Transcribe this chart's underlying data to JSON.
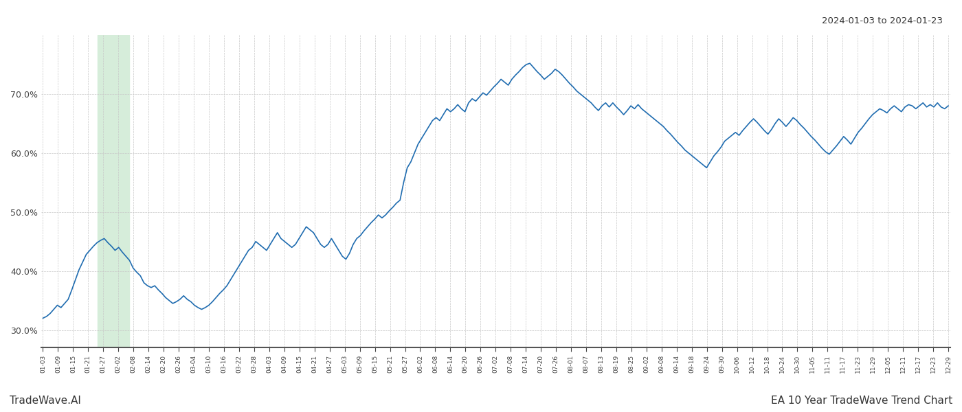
{
  "title_top_right": "2024-01-03 to 2024-01-23",
  "title_bottom_right": "EA 10 Year TradeWave Trend Chart",
  "title_bottom_left": "TradeWave.AI",
  "line_color": "#1f6cb0",
  "line_width": 1.2,
  "background_color": "#ffffff",
  "grid_color": "#c8c8c8",
  "highlight_color": "#d6edda",
  "ylim": [
    27,
    80
  ],
  "yticks": [
    30,
    40,
    50,
    60,
    70
  ],
  "x_labels": [
    "01-03",
    "01-09",
    "01-15",
    "01-21",
    "01-27",
    "02-02",
    "02-08",
    "02-14",
    "02-20",
    "02-26",
    "03-04",
    "03-10",
    "03-16",
    "03-22",
    "03-28",
    "04-03",
    "04-09",
    "04-15",
    "04-21",
    "04-27",
    "05-03",
    "05-09",
    "05-15",
    "05-21",
    "05-27",
    "06-02",
    "06-08",
    "06-14",
    "06-20",
    "06-26",
    "07-02",
    "07-08",
    "07-14",
    "07-20",
    "07-26",
    "08-01",
    "08-07",
    "08-13",
    "08-19",
    "08-25",
    "09-02",
    "09-08",
    "09-14",
    "09-18",
    "09-24",
    "09-30",
    "10-06",
    "10-12",
    "10-18",
    "10-24",
    "10-30",
    "11-05",
    "11-11",
    "11-17",
    "11-23",
    "11-29",
    "12-05",
    "12-11",
    "12-17",
    "12-23",
    "12-29"
  ],
  "highlight_x_start": "01-15",
  "highlight_x_end": "01-27",
  "values": [
    32.0,
    32.3,
    32.8,
    33.5,
    34.2,
    33.8,
    34.5,
    35.2,
    36.8,
    38.5,
    40.2,
    41.5,
    42.8,
    43.5,
    44.2,
    44.8,
    45.2,
    45.5,
    44.8,
    44.2,
    43.5,
    44.0,
    43.2,
    42.5,
    41.8,
    40.5,
    39.8,
    39.2,
    38.0,
    37.5,
    37.2,
    37.5,
    36.8,
    36.2,
    35.5,
    35.0,
    34.5,
    34.8,
    35.2,
    35.8,
    35.2,
    34.8,
    34.2,
    33.8,
    33.5,
    33.8,
    34.2,
    34.8,
    35.5,
    36.2,
    36.8,
    37.5,
    38.5,
    39.5,
    40.5,
    41.5,
    42.5,
    43.5,
    44.0,
    45.0,
    44.5,
    44.0,
    43.5,
    44.5,
    45.5,
    46.5,
    45.5,
    45.0,
    44.5,
    44.0,
    44.5,
    45.5,
    46.5,
    47.5,
    47.0,
    46.5,
    45.5,
    44.5,
    44.0,
    44.5,
    45.5,
    44.5,
    43.5,
    42.5,
    42.0,
    43.0,
    44.5,
    45.5,
    46.0,
    46.8,
    47.5,
    48.2,
    48.8,
    49.5,
    49.0,
    49.5,
    50.2,
    50.8,
    51.5,
    52.0,
    55.0,
    57.5,
    58.5,
    60.0,
    61.5,
    62.5,
    63.5,
    64.5,
    65.5,
    66.0,
    65.5,
    66.5,
    67.5,
    67.0,
    67.5,
    68.2,
    67.5,
    67.0,
    68.5,
    69.2,
    68.8,
    69.5,
    70.2,
    69.8,
    70.5,
    71.2,
    71.8,
    72.5,
    72.0,
    71.5,
    72.5,
    73.2,
    73.8,
    74.5,
    75.0,
    75.2,
    74.5,
    73.8,
    73.2,
    72.5,
    73.0,
    73.5,
    74.2,
    73.8,
    73.2,
    72.5,
    71.8,
    71.2,
    70.5,
    70.0,
    69.5,
    69.0,
    68.5,
    67.8,
    67.2,
    68.0,
    68.5,
    67.8,
    68.5,
    67.8,
    67.2,
    66.5,
    67.2,
    68.0,
    67.5,
    68.2,
    67.5,
    67.0,
    66.5,
    66.0,
    65.5,
    65.0,
    64.5,
    63.8,
    63.2,
    62.5,
    61.8,
    61.2,
    60.5,
    60.0,
    59.5,
    59.0,
    58.5,
    58.0,
    57.5,
    58.5,
    59.5,
    60.2,
    61.0,
    62.0,
    62.5,
    63.0,
    63.5,
    63.0,
    63.8,
    64.5,
    65.2,
    65.8,
    65.2,
    64.5,
    63.8,
    63.2,
    64.0,
    65.0,
    65.8,
    65.2,
    64.5,
    65.2,
    66.0,
    65.5,
    64.8,
    64.2,
    63.5,
    62.8,
    62.2,
    61.5,
    60.8,
    60.2,
    59.8,
    60.5,
    61.2,
    62.0,
    62.8,
    62.2,
    61.5,
    62.5,
    63.5,
    64.2,
    65.0,
    65.8,
    66.5,
    67.0,
    67.5,
    67.2,
    66.8,
    67.5,
    68.0,
    67.5,
    67.0,
    67.8,
    68.2,
    68.0,
    67.5,
    68.0,
    68.5,
    67.8,
    68.2,
    67.8,
    68.5,
    67.8,
    67.5,
    68.0
  ]
}
